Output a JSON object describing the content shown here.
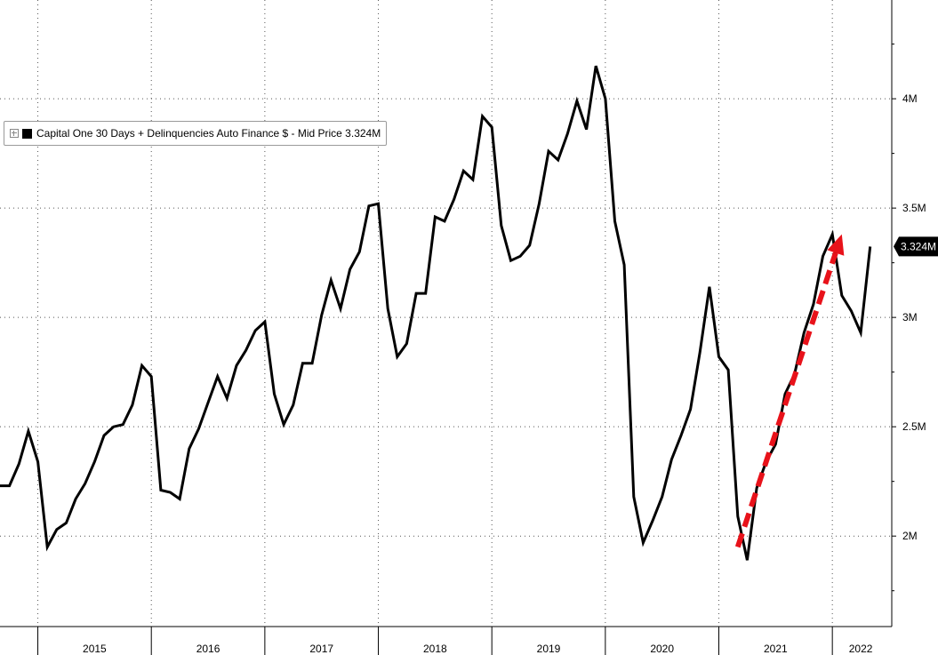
{
  "legend": {
    "series_label": "Capital One 30 Days + Delinquencies Auto Finance $ - Mid Price 3.324M"
  },
  "last_value_label": "3.324M",
  "chart_data": {
    "type": "line",
    "title": "",
    "xlabel": "",
    "ylabel": "",
    "x_tick_labels": [
      "2015",
      "2016",
      "2017",
      "2018",
      "2019",
      "2020",
      "2021",
      "2022"
    ],
    "y_tick_labels": [
      "2M",
      "2.5M",
      "3M",
      "3.5M",
      "4M"
    ],
    "y_ticks": [
      2000000,
      2500000,
      3000000,
      3500000,
      4000000
    ],
    "ylim": [
      1700000,
      4350000
    ],
    "xlim": [
      "2014-09",
      "2022-07"
    ],
    "grid": true,
    "y_axis_position": "right",
    "legend_position": "top-left",
    "line_color": "#000000",
    "annotation": {
      "type": "arrow",
      "style": "dashed",
      "color": "#e8121a",
      "from": [
        "2021-03",
        1950000
      ],
      "to": [
        "2022-02",
        3380000
      ]
    },
    "series": [
      {
        "name": "Capital One 30 Days + Delinquencies Auto Finance $ - Mid Price",
        "points": [
          [
            "2014-09",
            2230000
          ],
          [
            "2014-10",
            2230000
          ],
          [
            "2014-11",
            2330000
          ],
          [
            "2014-12",
            2480000
          ],
          [
            "2015-01",
            2340000
          ],
          [
            "2015-02",
            1950000
          ],
          [
            "2015-03",
            2030000
          ],
          [
            "2015-04",
            2060000
          ],
          [
            "2015-05",
            2170000
          ],
          [
            "2015-06",
            2240000
          ],
          [
            "2015-07",
            2340000
          ],
          [
            "2015-08",
            2460000
          ],
          [
            "2015-09",
            2500000
          ],
          [
            "2015-10",
            2510000
          ],
          [
            "2015-11",
            2600000
          ],
          [
            "2015-12",
            2780000
          ],
          [
            "2016-01",
            2730000
          ],
          [
            "2016-02",
            2210000
          ],
          [
            "2016-03",
            2200000
          ],
          [
            "2016-04",
            2170000
          ],
          [
            "2016-05",
            2400000
          ],
          [
            "2016-06",
            2490000
          ],
          [
            "2016-07",
            2610000
          ],
          [
            "2016-08",
            2730000
          ],
          [
            "2016-09",
            2630000
          ],
          [
            "2016-10",
            2780000
          ],
          [
            "2016-11",
            2850000
          ],
          [
            "2016-12",
            2940000
          ],
          [
            "2017-01",
            2980000
          ],
          [
            "2017-02",
            2650000
          ],
          [
            "2017-03",
            2510000
          ],
          [
            "2017-04",
            2600000
          ],
          [
            "2017-05",
            2790000
          ],
          [
            "2017-06",
            2790000
          ],
          [
            "2017-07",
            3010000
          ],
          [
            "2017-08",
            3170000
          ],
          [
            "2017-09",
            3040000
          ],
          [
            "2017-10",
            3220000
          ],
          [
            "2017-11",
            3300000
          ],
          [
            "2017-12",
            3510000
          ],
          [
            "2018-01",
            3520000
          ],
          [
            "2018-02",
            3040000
          ],
          [
            "2018-03",
            2820000
          ],
          [
            "2018-04",
            2880000
          ],
          [
            "2018-05",
            3110000
          ],
          [
            "2018-06",
            3110000
          ],
          [
            "2018-07",
            3460000
          ],
          [
            "2018-08",
            3440000
          ],
          [
            "2018-09",
            3540000
          ],
          [
            "2018-10",
            3670000
          ],
          [
            "2018-11",
            3630000
          ],
          [
            "2018-12",
            3920000
          ],
          [
            "2019-01",
            3870000
          ],
          [
            "2019-02",
            3420000
          ],
          [
            "2019-03",
            3260000
          ],
          [
            "2019-04",
            3280000
          ],
          [
            "2019-05",
            3330000
          ],
          [
            "2019-06",
            3520000
          ],
          [
            "2019-07",
            3760000
          ],
          [
            "2019-08",
            3720000
          ],
          [
            "2019-09",
            3840000
          ],
          [
            "2019-10",
            3990000
          ],
          [
            "2019-11",
            3860000
          ],
          [
            "2019-12",
            4150000
          ],
          [
            "2020-01",
            4000000
          ],
          [
            "2020-02",
            3440000
          ],
          [
            "2020-03",
            3240000
          ],
          [
            "2020-04",
            2180000
          ],
          [
            "2020-05",
            1970000
          ],
          [
            "2020-06",
            2070000
          ],
          [
            "2020-07",
            2180000
          ],
          [
            "2020-08",
            2350000
          ],
          [
            "2020-09",
            2460000
          ],
          [
            "2020-10",
            2580000
          ],
          [
            "2020-11",
            2840000
          ],
          [
            "2020-12",
            3140000
          ],
          [
            "2021-01",
            2820000
          ],
          [
            "2021-02",
            2760000
          ],
          [
            "2021-03",
            2090000
          ],
          [
            "2021-04",
            1890000
          ],
          [
            "2021-05",
            2220000
          ],
          [
            "2021-06",
            2340000
          ],
          [
            "2021-07",
            2420000
          ],
          [
            "2021-08",
            2650000
          ],
          [
            "2021-09",
            2740000
          ],
          [
            "2021-10",
            2930000
          ],
          [
            "2021-11",
            3060000
          ],
          [
            "2021-12",
            3280000
          ],
          [
            "2022-01",
            3380000
          ],
          [
            "2022-02",
            3100000
          ],
          [
            "2022-03",
            3030000
          ],
          [
            "2022-04",
            2930000
          ],
          [
            "2022-05",
            3324000
          ]
        ]
      }
    ]
  }
}
